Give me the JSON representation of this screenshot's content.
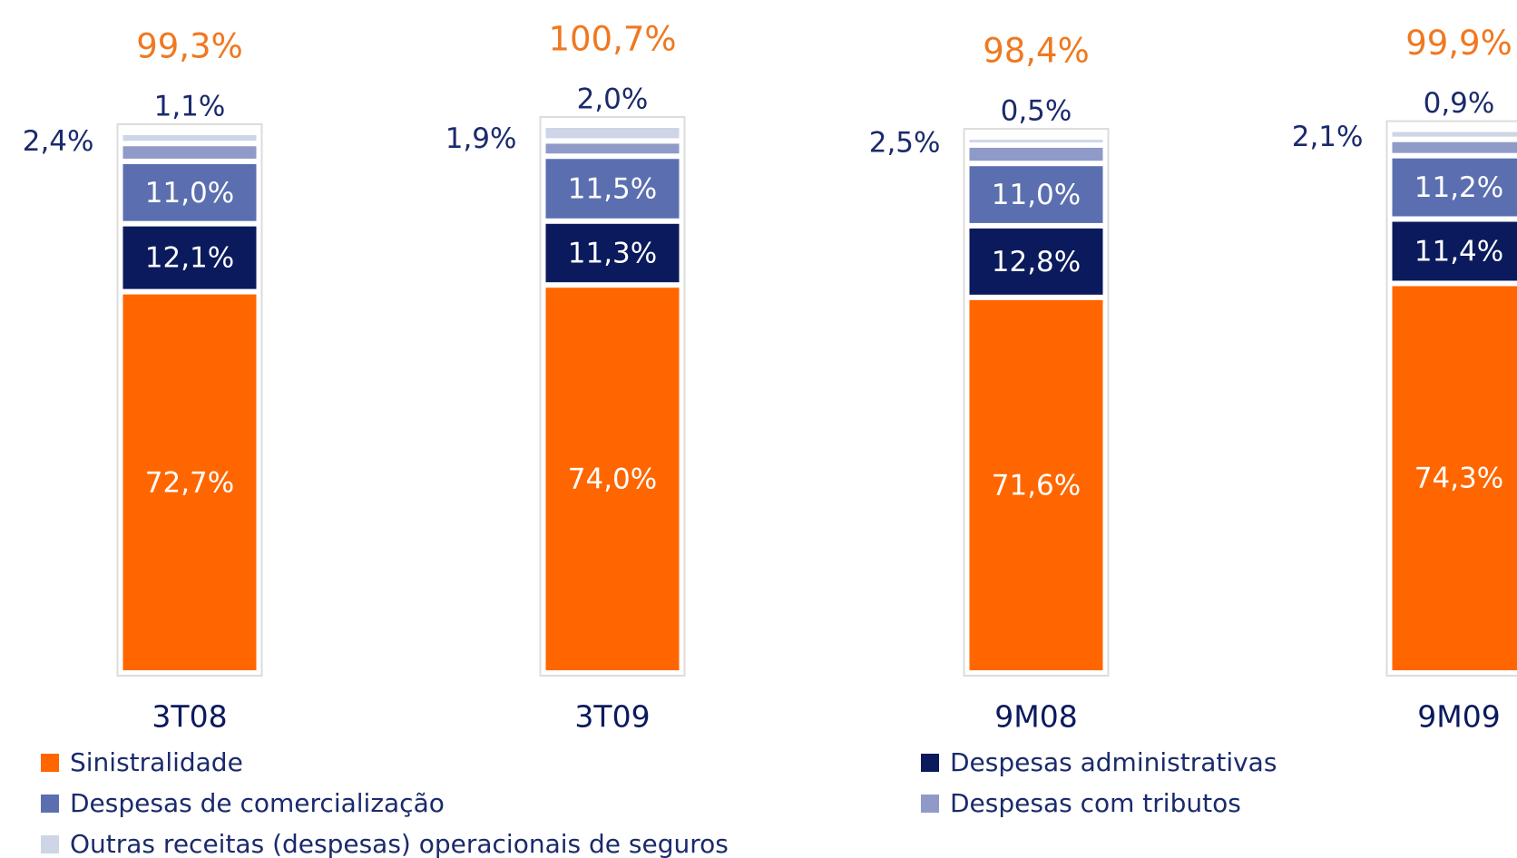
{
  "chart_data": {
    "type": "stacked-bar",
    "categories": [
      "3T08",
      "3T09",
      "9M08",
      "9M09"
    ],
    "series": [
      {
        "name": "Sinistralidade",
        "color": "#ff6600",
        "values": [
          72.7,
          74.0,
          71.6,
          74.3
        ],
        "value_labels": [
          "72,7%",
          "74,0%",
          "71,6%",
          "74,3%"
        ]
      },
      {
        "name": "Despesas administrativas",
        "color": "#0a1a5c",
        "values": [
          12.1,
          11.3,
          12.8,
          11.4
        ],
        "value_labels": [
          "12,1%",
          "11,3%",
          "12,8%",
          "11,4%"
        ]
      },
      {
        "name": "Despesas de comercialização",
        "color": "#5b6fb0",
        "values": [
          11.0,
          11.5,
          11.0,
          11.2
        ],
        "value_labels": [
          "11,0%",
          "11,5%",
          "11,0%",
          "11,2%"
        ]
      },
      {
        "name": "Despesas com tributos",
        "color": "#8f9ac8",
        "values": [
          2.4,
          1.9,
          2.5,
          2.1
        ],
        "value_labels": [
          "2,4%",
          "1,9%",
          "2,5%",
          "2,1%"
        ]
      },
      {
        "name": "Outras receitas (despesas) operacionais de seguros",
        "color": "#cdd5e6",
        "values": [
          1.1,
          2.0,
          0.5,
          0.9
        ],
        "value_labels": [
          "1,1%",
          "2,0%",
          "0,5%",
          "0,9%"
        ]
      }
    ],
    "totals": {
      "values": [
        99.3,
        100.7,
        98.4,
        99.9
      ],
      "value_labels": [
        "99,3%",
        "100,7%",
        "98,4%",
        "99,9%"
      ]
    }
  }
}
